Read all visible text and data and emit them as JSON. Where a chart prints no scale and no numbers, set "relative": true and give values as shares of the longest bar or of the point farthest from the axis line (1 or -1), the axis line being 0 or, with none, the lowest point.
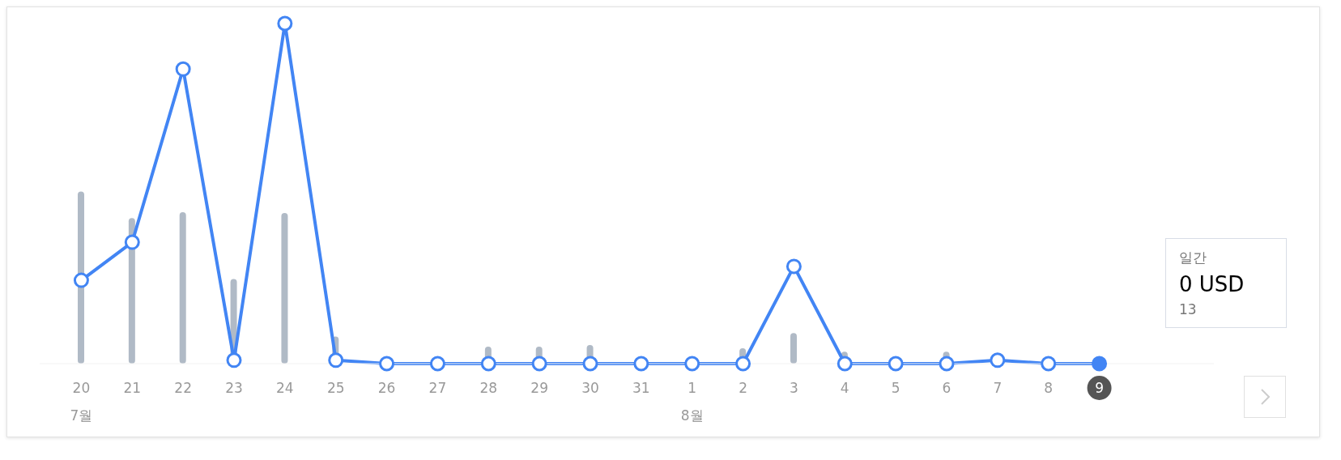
{
  "chart_data": {
    "type": "line",
    "relative": true,
    "marker": "circle",
    "line_style": "solid",
    "categories": [
      "20",
      "21",
      "22",
      "23",
      "24",
      "25",
      "26",
      "27",
      "28",
      "29",
      "30",
      "31",
      "1",
      "2",
      "3",
      "4",
      "5",
      "6",
      "7",
      "8",
      "9"
    ],
    "series": [
      {
        "type": "bar",
        "color": "#b0bac6",
        "values": [
          0.506,
          0.428,
          0.445,
          0.249,
          0.443,
          0.08,
          0,
          0,
          0.05,
          0.05,
          0.055,
          0,
          0,
          0.045,
          0.09,
          0.035,
          null,
          0.035,
          0,
          null,
          null
        ]
      },
      {
        "color": "#4285f4",
        "values": [
          0.245,
          0.357,
          0.866,
          0.01,
          1,
          0.01,
          0,
          0,
          0,
          0,
          0,
          0,
          0,
          0,
          0.286,
          0,
          0,
          0,
          0.01,
          0,
          0
        ]
      }
    ],
    "annotations": [
      "7월",
      "8월",
      "일간",
      "0 USD",
      "13"
    ]
  }
}
